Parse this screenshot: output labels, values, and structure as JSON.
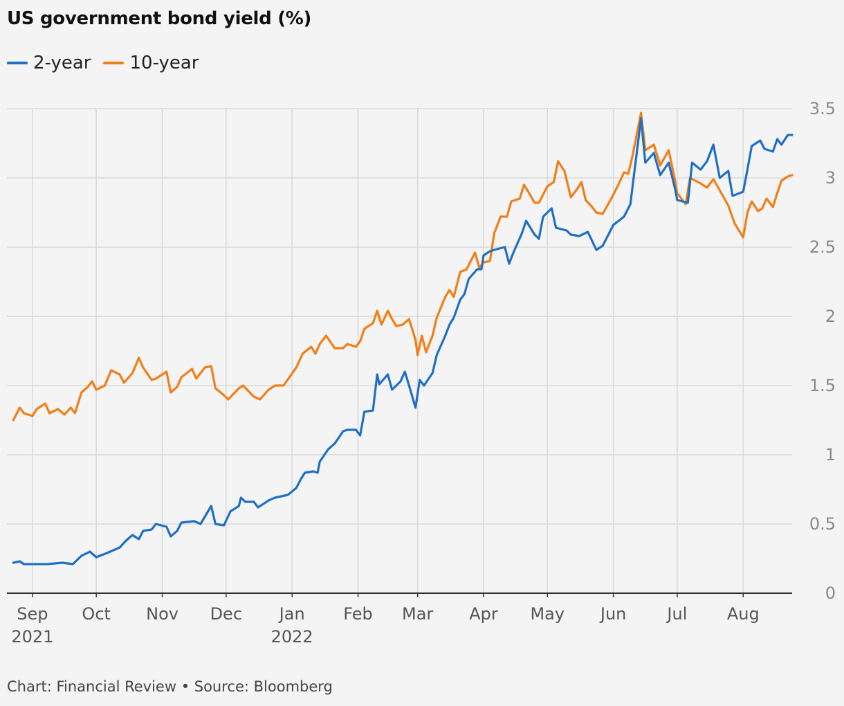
{
  "chart_data": {
    "type": "line",
    "title": "US government bond yield (%)",
    "source": "Chart: Financial Review • Source: Bloomberg",
    "ylim": [
      0,
      3.5
    ],
    "y_ticks": [
      "0",
      "0.5",
      "1",
      "1.5",
      "2",
      "2.5",
      "3",
      "3.5"
    ],
    "x_range": [
      "2021-08-20",
      "2022-08-24"
    ],
    "x_ticks": [
      {
        "date": "2021-09-01",
        "label": "Sep",
        "sub": "2021"
      },
      {
        "date": "2021-10-01",
        "label": "Oct",
        "sub": ""
      },
      {
        "date": "2021-11-01",
        "label": "Nov",
        "sub": ""
      },
      {
        "date": "2021-12-01",
        "label": "Dec",
        "sub": ""
      },
      {
        "date": "2022-01-01",
        "label": "Jan",
        "sub": "2022"
      },
      {
        "date": "2022-02-01",
        "label": "Feb",
        "sub": ""
      },
      {
        "date": "2022-03-01",
        "label": "Mar",
        "sub": ""
      },
      {
        "date": "2022-04-01",
        "label": "Apr",
        "sub": ""
      },
      {
        "date": "2022-05-01",
        "label": "May",
        "sub": ""
      },
      {
        "date": "2022-06-01",
        "label": "Jun",
        "sub": ""
      },
      {
        "date": "2022-07-01",
        "label": "Jul",
        "sub": ""
      },
      {
        "date": "2022-08-01",
        "label": "Aug",
        "sub": ""
      }
    ],
    "grid": true,
    "legend_position": "top-left",
    "series": [
      {
        "name": "2-year",
        "color": "#1f6fc5",
        "points": [
          [
            "2021-08-23",
            0.22
          ],
          [
            "2021-08-26",
            0.23
          ],
          [
            "2021-08-28",
            0.21
          ],
          [
            "2021-09-01",
            0.21
          ],
          [
            "2021-09-08",
            0.21
          ],
          [
            "2021-09-15",
            0.22
          ],
          [
            "2021-09-20",
            0.21
          ],
          [
            "2021-09-24",
            0.27
          ],
          [
            "2021-09-28",
            0.3
          ],
          [
            "2021-10-01",
            0.26
          ],
          [
            "2021-10-06",
            0.29
          ],
          [
            "2021-10-12",
            0.33
          ],
          [
            "2021-10-15",
            0.38
          ],
          [
            "2021-10-18",
            0.42
          ],
          [
            "2021-10-21",
            0.39
          ],
          [
            "2021-10-23",
            0.45
          ],
          [
            "2021-10-27",
            0.46
          ],
          [
            "2021-10-29",
            0.5
          ],
          [
            "2021-11-03",
            0.48
          ],
          [
            "2021-11-05",
            0.41
          ],
          [
            "2021-11-08",
            0.45
          ],
          [
            "2021-11-10",
            0.51
          ],
          [
            "2021-11-16",
            0.52
          ],
          [
            "2021-11-19",
            0.5
          ],
          [
            "2021-11-24",
            0.63
          ],
          [
            "2021-11-26",
            0.5
          ],
          [
            "2021-11-30",
            0.49
          ],
          [
            "2021-12-03",
            0.59
          ],
          [
            "2021-12-07",
            0.63
          ],
          [
            "2021-12-08",
            0.69
          ],
          [
            "2021-12-10",
            0.66
          ],
          [
            "2021-12-14",
            0.66
          ],
          [
            "2021-12-16",
            0.62
          ],
          [
            "2021-12-21",
            0.67
          ],
          [
            "2021-12-24",
            0.69
          ],
          [
            "2021-12-30",
            0.71
          ],
          [
            "2022-01-03",
            0.76
          ],
          [
            "2022-01-05",
            0.82
          ],
          [
            "2022-01-07",
            0.87
          ],
          [
            "2022-01-11",
            0.88
          ],
          [
            "2022-01-13",
            0.87
          ],
          [
            "2022-01-14",
            0.95
          ],
          [
            "2022-01-18",
            1.04
          ],
          [
            "2022-01-21",
            1.08
          ],
          [
            "2022-01-25",
            1.17
          ],
          [
            "2022-01-27",
            1.18
          ],
          [
            "2022-01-31",
            1.18
          ],
          [
            "2022-02-02",
            1.14
          ],
          [
            "2022-02-04",
            1.31
          ],
          [
            "2022-02-08",
            1.32
          ],
          [
            "2022-02-10",
            1.58
          ],
          [
            "2022-02-11",
            1.51
          ],
          [
            "2022-02-15",
            1.58
          ],
          [
            "2022-02-17",
            1.47
          ],
          [
            "2022-02-21",
            1.53
          ],
          [
            "2022-02-23",
            1.6
          ],
          [
            "2022-02-25",
            1.5
          ],
          [
            "2022-02-28",
            1.34
          ],
          [
            "2022-03-02",
            1.54
          ],
          [
            "2022-03-04",
            1.5
          ],
          [
            "2022-03-08",
            1.59
          ],
          [
            "2022-03-10",
            1.72
          ],
          [
            "2022-03-14",
            1.86
          ],
          [
            "2022-03-16",
            1.94
          ],
          [
            "2022-03-18",
            1.99
          ],
          [
            "2022-03-21",
            2.12
          ],
          [
            "2022-03-23",
            2.16
          ],
          [
            "2022-03-25",
            2.27
          ],
          [
            "2022-03-29",
            2.34
          ],
          [
            "2022-03-31",
            2.34
          ],
          [
            "2022-04-01",
            2.44
          ],
          [
            "2022-04-04",
            2.47
          ],
          [
            "2022-04-06",
            2.48
          ],
          [
            "2022-04-11",
            2.5
          ],
          [
            "2022-04-13",
            2.38
          ],
          [
            "2022-04-15",
            2.46
          ],
          [
            "2022-04-19",
            2.6
          ],
          [
            "2022-04-21",
            2.69
          ],
          [
            "2022-04-25",
            2.59
          ],
          [
            "2022-04-27",
            2.56
          ],
          [
            "2022-04-29",
            2.72
          ],
          [
            "2022-05-03",
            2.78
          ],
          [
            "2022-05-05",
            2.64
          ],
          [
            "2022-05-10",
            2.62
          ],
          [
            "2022-05-12",
            2.59
          ],
          [
            "2022-05-16",
            2.58
          ],
          [
            "2022-05-20",
            2.61
          ],
          [
            "2022-05-24",
            2.48
          ],
          [
            "2022-05-27",
            2.51
          ],
          [
            "2022-06-01",
            2.66
          ],
          [
            "2022-06-06",
            2.72
          ],
          [
            "2022-06-09",
            2.81
          ],
          [
            "2022-06-14",
            3.43
          ],
          [
            "2022-06-16",
            3.11
          ],
          [
            "2022-06-20",
            3.18
          ],
          [
            "2022-06-23",
            3.02
          ],
          [
            "2022-06-27",
            3.11
          ],
          [
            "2022-06-30",
            2.92
          ],
          [
            "2022-07-01",
            2.84
          ],
          [
            "2022-07-06",
            2.82
          ],
          [
            "2022-07-08",
            3.11
          ],
          [
            "2022-07-12",
            3.06
          ],
          [
            "2022-07-15",
            3.12
          ],
          [
            "2022-07-18",
            3.24
          ],
          [
            "2022-07-21",
            3.0
          ],
          [
            "2022-07-25",
            3.05
          ],
          [
            "2022-07-27",
            2.87
          ],
          [
            "2022-08-01",
            2.9
          ],
          [
            "2022-08-03",
            3.06
          ],
          [
            "2022-08-05",
            3.23
          ],
          [
            "2022-08-09",
            3.27
          ],
          [
            "2022-08-11",
            3.21
          ],
          [
            "2022-08-15",
            3.19
          ],
          [
            "2022-08-17",
            3.28
          ],
          [
            "2022-08-19",
            3.24
          ],
          [
            "2022-08-22",
            3.31
          ],
          [
            "2022-08-24",
            3.31
          ]
        ]
      },
      {
        "name": "10-year",
        "color": "#f07f17",
        "points": [
          [
            "2021-08-23",
            1.25
          ],
          [
            "2021-08-26",
            1.34
          ],
          [
            "2021-08-28",
            1.3
          ],
          [
            "2021-09-01",
            1.28
          ],
          [
            "2021-09-03",
            1.33
          ],
          [
            "2021-09-07",
            1.37
          ],
          [
            "2021-09-09",
            1.3
          ],
          [
            "2021-09-13",
            1.33
          ],
          [
            "2021-09-16",
            1.29
          ],
          [
            "2021-09-19",
            1.34
          ],
          [
            "2021-09-21",
            1.3
          ],
          [
            "2021-09-24",
            1.45
          ],
          [
            "2021-09-27",
            1.49
          ],
          [
            "2021-09-29",
            1.53
          ],
          [
            "2021-10-01",
            1.47
          ],
          [
            "2021-10-05",
            1.5
          ],
          [
            "2021-10-08",
            1.61
          ],
          [
            "2021-10-12",
            1.58
          ],
          [
            "2021-10-14",
            1.52
          ],
          [
            "2021-10-18",
            1.59
          ],
          [
            "2021-10-21",
            1.7
          ],
          [
            "2021-10-23",
            1.63
          ],
          [
            "2021-10-27",
            1.54
          ],
          [
            "2021-10-29",
            1.55
          ],
          [
            "2021-11-03",
            1.6
          ],
          [
            "2021-11-05",
            1.45
          ],
          [
            "2021-11-08",
            1.49
          ],
          [
            "2021-11-10",
            1.56
          ],
          [
            "2021-11-15",
            1.62
          ],
          [
            "2021-11-17",
            1.55
          ],
          [
            "2021-11-21",
            1.63
          ],
          [
            "2021-11-24",
            1.64
          ],
          [
            "2021-11-26",
            1.48
          ],
          [
            "2021-11-30",
            1.43
          ],
          [
            "2021-12-02",
            1.4
          ],
          [
            "2021-12-07",
            1.48
          ],
          [
            "2021-12-09",
            1.5
          ],
          [
            "2021-12-14",
            1.42
          ],
          [
            "2021-12-17",
            1.4
          ],
          [
            "2021-12-21",
            1.47
          ],
          [
            "2021-12-24",
            1.5
          ],
          [
            "2021-12-28",
            1.5
          ],
          [
            "2022-01-03",
            1.63
          ],
          [
            "2022-01-06",
            1.73
          ],
          [
            "2022-01-10",
            1.78
          ],
          [
            "2022-01-12",
            1.73
          ],
          [
            "2022-01-14",
            1.8
          ],
          [
            "2022-01-17",
            1.86
          ],
          [
            "2022-01-21",
            1.77
          ],
          [
            "2022-01-25",
            1.77
          ],
          [
            "2022-01-27",
            1.8
          ],
          [
            "2022-01-31",
            1.78
          ],
          [
            "2022-02-02",
            1.82
          ],
          [
            "2022-02-04",
            1.91
          ],
          [
            "2022-02-08",
            1.95
          ],
          [
            "2022-02-10",
            2.04
          ],
          [
            "2022-02-12",
            1.94
          ],
          [
            "2022-02-15",
            2.04
          ],
          [
            "2022-02-17",
            1.98
          ],
          [
            "2022-02-19",
            1.93
          ],
          [
            "2022-02-22",
            1.94
          ],
          [
            "2022-02-25",
            1.98
          ],
          [
            "2022-02-28",
            1.83
          ],
          [
            "2022-03-01",
            1.72
          ],
          [
            "2022-03-03",
            1.86
          ],
          [
            "2022-03-05",
            1.74
          ],
          [
            "2022-03-08",
            1.86
          ],
          [
            "2022-03-10",
            1.99
          ],
          [
            "2022-03-14",
            2.14
          ],
          [
            "2022-03-16",
            2.19
          ],
          [
            "2022-03-18",
            2.14
          ],
          [
            "2022-03-21",
            2.32
          ],
          [
            "2022-03-24",
            2.34
          ],
          [
            "2022-03-28",
            2.46
          ],
          [
            "2022-03-30",
            2.35
          ],
          [
            "2022-04-01",
            2.39
          ],
          [
            "2022-04-04",
            2.4
          ],
          [
            "2022-04-06",
            2.6
          ],
          [
            "2022-04-09",
            2.72
          ],
          [
            "2022-04-12",
            2.72
          ],
          [
            "2022-04-14",
            2.83
          ],
          [
            "2022-04-18",
            2.85
          ],
          [
            "2022-04-20",
            2.95
          ],
          [
            "2022-04-22",
            2.9
          ],
          [
            "2022-04-25",
            2.82
          ],
          [
            "2022-04-27",
            2.82
          ],
          [
            "2022-05-01",
            2.94
          ],
          [
            "2022-05-04",
            2.97
          ],
          [
            "2022-05-06",
            3.12
          ],
          [
            "2022-05-09",
            3.05
          ],
          [
            "2022-05-12",
            2.86
          ],
          [
            "2022-05-15",
            2.92
          ],
          [
            "2022-05-17",
            2.97
          ],
          [
            "2022-05-19",
            2.84
          ],
          [
            "2022-05-22",
            2.79
          ],
          [
            "2022-05-24",
            2.75
          ],
          [
            "2022-05-27",
            2.74
          ],
          [
            "2022-05-31",
            2.85
          ],
          [
            "2022-06-03",
            2.94
          ],
          [
            "2022-06-06",
            3.04
          ],
          [
            "2022-06-08",
            3.03
          ],
          [
            "2022-06-10",
            3.16
          ],
          [
            "2022-06-14",
            3.47
          ],
          [
            "2022-06-16",
            3.2
          ],
          [
            "2022-06-20",
            3.24
          ],
          [
            "2022-06-23",
            3.09
          ],
          [
            "2022-06-27",
            3.2
          ],
          [
            "2022-06-30",
            2.98
          ],
          [
            "2022-07-01",
            2.89
          ],
          [
            "2022-07-05",
            2.81
          ],
          [
            "2022-07-07",
            3.0
          ],
          [
            "2022-07-12",
            2.96
          ],
          [
            "2022-07-15",
            2.93
          ],
          [
            "2022-07-18",
            2.99
          ],
          [
            "2022-07-21",
            2.91
          ],
          [
            "2022-07-25",
            2.8
          ],
          [
            "2022-07-28",
            2.67
          ],
          [
            "2022-08-01",
            2.57
          ],
          [
            "2022-08-03",
            2.75
          ],
          [
            "2022-08-05",
            2.83
          ],
          [
            "2022-08-08",
            2.76
          ],
          [
            "2022-08-10",
            2.78
          ],
          [
            "2022-08-12",
            2.85
          ],
          [
            "2022-08-15",
            2.79
          ],
          [
            "2022-08-17",
            2.89
          ],
          [
            "2022-08-19",
            2.98
          ],
          [
            "2022-08-22",
            3.01
          ],
          [
            "2022-08-24",
            3.02
          ]
        ]
      }
    ]
  }
}
